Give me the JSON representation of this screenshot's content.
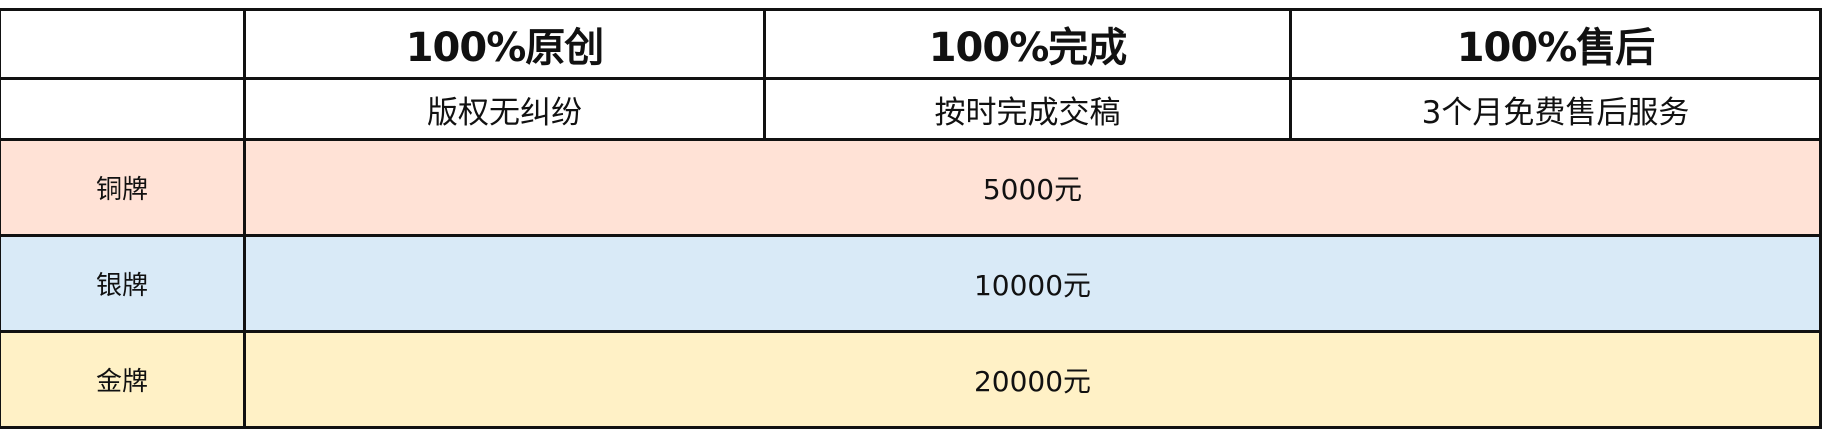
{
  "header": {
    "titles": [
      "100%原创",
      "100%完成",
      "100%售后"
    ],
    "subtitles": [
      "版权无纠纷",
      "按时完成交稿",
      "3个月免费售后服务"
    ]
  },
  "tiers": [
    {
      "name": "铜牌",
      "price": "5000元",
      "color": "#ffe2d6"
    },
    {
      "name": "银牌",
      "price": "10000元",
      "color": "#d9eaf7"
    },
    {
      "name": "金牌",
      "price": "20000元",
      "color": "#fff1c6"
    }
  ]
}
